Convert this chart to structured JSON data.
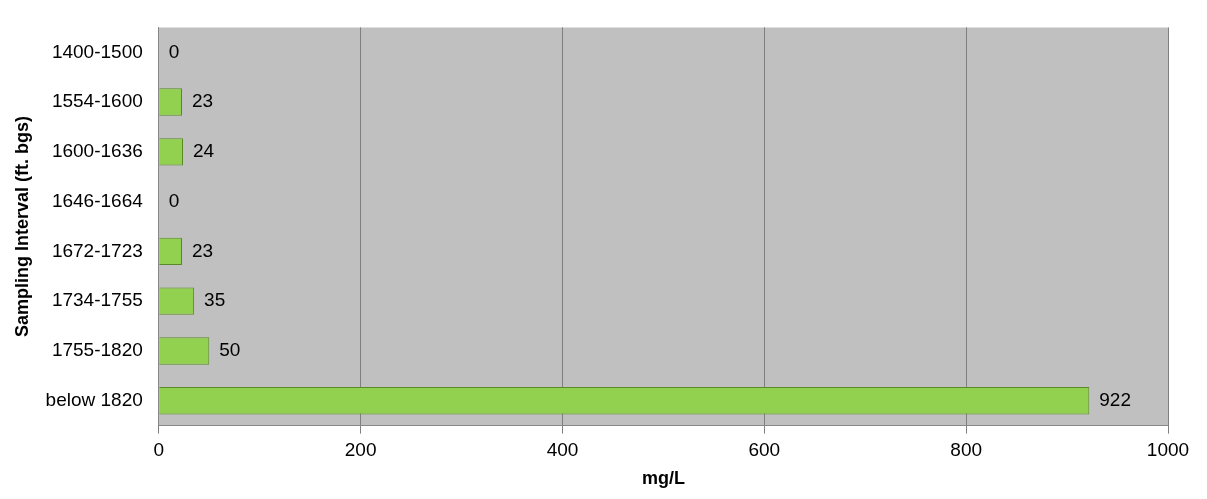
{
  "chart_data": {
    "type": "bar",
    "orientation": "horizontal",
    "categories": [
      "1400-1500",
      "1554-1600",
      "1600-1636",
      "1646-1664",
      "1672-1723",
      "1734-1755",
      "1755-1820",
      "below 1820"
    ],
    "values": [
      0,
      23,
      24,
      0,
      23,
      35,
      50,
      922
    ],
    "color": "#92d050",
    "xlim": [
      0,
      1000
    ],
    "xticks": [
      0,
      200,
      400,
      600,
      800,
      1000
    ],
    "xlabel": "mg/L",
    "ylabel": "Sampling Interval (ft. bgs)",
    "grid": "x",
    "data_labels": true
  }
}
